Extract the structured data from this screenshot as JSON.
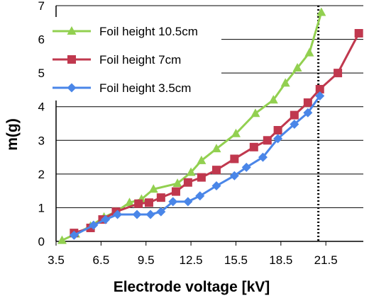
{
  "chart_data": {
    "type": "line",
    "xlabel": "Electrode voltage [kV]",
    "ylabel": "m(g)",
    "xlim": [
      3.5,
      24.0
    ],
    "ylim": [
      0,
      7
    ],
    "x_ticks": [
      "3.5",
      "6.5",
      "9.5",
      "12.5",
      "15.5",
      "18.5",
      "21.5"
    ],
    "y_ticks": [
      "0",
      "1",
      "2",
      "3",
      "4",
      "5",
      "6",
      "7"
    ],
    "grid": "horizontal",
    "legend_position": "top-left",
    "reference_line": {
      "x": 21.0,
      "style": "dotted",
      "color": "#000000"
    },
    "series": [
      {
        "name": "Foil height 10.5cm",
        "color": "#92d050",
        "marker": "triangle",
        "points": [
          [
            3.9,
            0.03
          ],
          [
            4.8,
            0.22
          ],
          [
            5.8,
            0.45
          ],
          [
            6.7,
            0.72
          ],
          [
            7.5,
            0.88
          ],
          [
            8.4,
            1.15
          ],
          [
            9.2,
            1.25
          ],
          [
            10.0,
            1.55
          ],
          [
            11.6,
            1.72
          ],
          [
            12.5,
            2.05
          ],
          [
            13.2,
            2.4
          ],
          [
            14.2,
            2.75
          ],
          [
            15.5,
            3.2
          ],
          [
            16.8,
            3.8
          ],
          [
            18.0,
            4.2
          ],
          [
            18.8,
            4.7
          ],
          [
            19.6,
            5.15
          ],
          [
            20.4,
            5.6
          ],
          [
            21.2,
            6.8
          ]
        ]
      },
      {
        "name": "Foil height 7cm",
        "color": "#c0384e",
        "marker": "square",
        "points": [
          [
            4.7,
            0.25
          ],
          [
            5.8,
            0.4
          ],
          [
            6.6,
            0.65
          ],
          [
            7.5,
            0.88
          ],
          [
            9.0,
            1.12
          ],
          [
            9.7,
            1.15
          ],
          [
            10.5,
            1.3
          ],
          [
            11.5,
            1.48
          ],
          [
            12.3,
            1.75
          ],
          [
            13.2,
            1.9
          ],
          [
            14.2,
            2.12
          ],
          [
            15.4,
            2.45
          ],
          [
            16.7,
            2.8
          ],
          [
            17.6,
            3.0
          ],
          [
            18.3,
            3.3
          ],
          [
            19.4,
            3.75
          ],
          [
            20.3,
            4.12
          ],
          [
            21.1,
            4.52
          ],
          [
            22.3,
            5.0
          ],
          [
            23.7,
            6.18
          ]
        ]
      },
      {
        "name": "Foil height 3.5cm",
        "color": "#4a86e8",
        "marker": "diamond",
        "points": [
          [
            4.7,
            0.18
          ],
          [
            6.0,
            0.48
          ],
          [
            6.8,
            0.65
          ],
          [
            7.6,
            0.8
          ],
          [
            8.9,
            0.8
          ],
          [
            9.8,
            0.8
          ],
          [
            10.5,
            0.88
          ],
          [
            11.3,
            1.18
          ],
          [
            12.3,
            1.18
          ],
          [
            13.1,
            1.35
          ],
          [
            14.2,
            1.65
          ],
          [
            15.4,
            1.95
          ],
          [
            16.2,
            2.2
          ],
          [
            17.3,
            2.5
          ],
          [
            18.3,
            3.05
          ],
          [
            19.4,
            3.48
          ],
          [
            20.3,
            3.82
          ],
          [
            21.1,
            4.32
          ]
        ]
      }
    ]
  }
}
